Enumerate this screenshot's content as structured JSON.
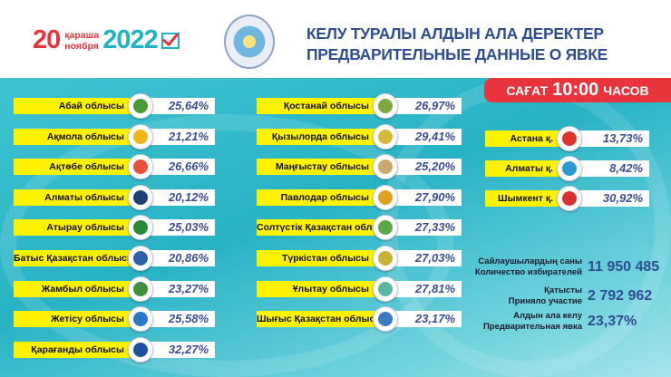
{
  "header": {
    "day": "20",
    "month_kz": "қараша",
    "month_ru": "ноября",
    "year": "2022",
    "title_kz": "КЕЛУ ТУРАЛЫ АЛДЫН АЛА ДЕРЕКТЕР",
    "title_ru": "ПРЕДВАРИТЕЛЬНЫЕ ДАННЫЕ О ЯВКЕ"
  },
  "time_badge": {
    "prefix": "САҒАТ",
    "time": "10:00",
    "suffix": "ЧАСОВ"
  },
  "colors": {
    "accent_red": "#e8343c",
    "teal": "#27b2c4",
    "yellow": "#fff200",
    "value_blue": "#3a4f93"
  },
  "regions_left": [
    {
      "name": "Абай облысы",
      "value": "25,64%"
    },
    {
      "name": "Ақмола облысы",
      "value": "21,21%"
    },
    {
      "name": "Ақтөбе облысы",
      "value": "26,66%"
    },
    {
      "name": "Алматы облысы",
      "value": "20,12%"
    },
    {
      "name": "Атырау облысы",
      "value": "25,03%"
    },
    {
      "name": "Батыс Қазақстан облысы",
      "value": "20,86%"
    },
    {
      "name": "Жамбыл облысы",
      "value": "23,27%"
    },
    {
      "name": "Жетісу облысы",
      "value": "25,58%"
    },
    {
      "name": "Қарағанды облысы",
      "value": "32,27%"
    }
  ],
  "regions_mid": [
    {
      "name": "Қостанай облысы",
      "value": "26,97%"
    },
    {
      "name": "Қызылорда облысы",
      "value": "29,41%"
    },
    {
      "name": "Маңғыстау облысы",
      "value": "25,20%"
    },
    {
      "name": "Павлодар облысы",
      "value": "27,90%"
    },
    {
      "name": "Солтүстік Қазақстан облысы",
      "value": "27,33%"
    },
    {
      "name": "Түркістан облысы",
      "value": "27,03%"
    },
    {
      "name": "Ұлытау облысы",
      "value": "27,81%"
    },
    {
      "name": "Шығыс Қазақстан облысы",
      "value": "23,17%"
    }
  ],
  "cities": [
    {
      "name": "Астана қ.",
      "value": "13,73%"
    },
    {
      "name": "Алматы қ.",
      "value": "8,42%"
    },
    {
      "name": "Шымкент қ.",
      "value": "30,92%"
    }
  ],
  "stats": [
    {
      "label_kz": "Сайлаушылардың саны",
      "label_ru": "Количество избирателей",
      "value": "11 950 485"
    },
    {
      "label_kz": "Қатысты",
      "label_ru": "Приняло участие",
      "value": "2 792 962"
    },
    {
      "label_kz": "Алдын ала келу",
      "label_ru": "Предварительная явка",
      "value": "23,37%"
    }
  ]
}
